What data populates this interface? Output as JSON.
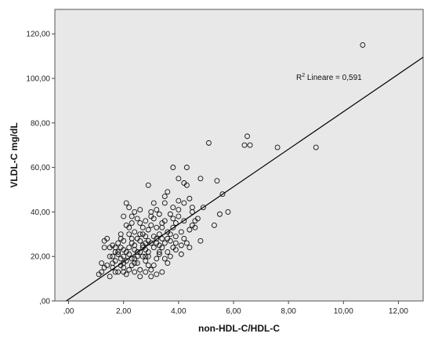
{
  "chart_data": {
    "type": "scatter",
    "xlabel": "non-HDL-C/HDL-C",
    "ylabel": "VLDL-C mg/dL",
    "xlim": [
      -0.5,
      12.9
    ],
    "ylim": [
      0,
      131
    ],
    "x_ticks": [
      ",00",
      "2,00",
      "4,00",
      "6,00",
      "8,00",
      "10,00",
      "12,00"
    ],
    "x_tick_values": [
      0,
      2,
      4,
      6,
      8,
      10,
      12
    ],
    "y_ticks": [
      ",00",
      "20,00",
      "40,00",
      "60,00",
      "80,00",
      "100,00",
      "120,00"
    ],
    "y_tick_values": [
      0,
      20,
      40,
      60,
      80,
      100,
      120
    ],
    "annotation": {
      "r2_prefix": "R",
      "r2_sup": "2",
      "r2_text": " Lineare = 0,591"
    },
    "fit_line": {
      "x1": -0.5,
      "y1": -3.5,
      "x2": 12.9,
      "y2": 109.5
    },
    "grid": false,
    "background": "#e8e8e8",
    "marker_color": "#111111",
    "points": [
      [
        10.7,
        115
      ],
      [
        9.0,
        69
      ],
      [
        7.6,
        69
      ],
      [
        6.6,
        70
      ],
      [
        6.5,
        74
      ],
      [
        6.4,
        70
      ],
      [
        5.1,
        71
      ],
      [
        5.6,
        48
      ],
      [
        5.8,
        40
      ],
      [
        5.4,
        54
      ],
      [
        5.3,
        34
      ],
      [
        5.5,
        39
      ],
      [
        4.8,
        55
      ],
      [
        4.9,
        42
      ],
      [
        4.8,
        27
      ],
      [
        4.5,
        40
      ],
      [
        4.2,
        53
      ],
      [
        4.3,
        52
      ],
      [
        4.3,
        60
      ],
      [
        3.8,
        60
      ],
      [
        4.0,
        55
      ],
      [
        4.0,
        45
      ],
      [
        4.2,
        44
      ],
      [
        4.4,
        46
      ],
      [
        4.5,
        42
      ],
      [
        4.0,
        38
      ],
      [
        4.2,
        36
      ],
      [
        4.1,
        31
      ],
      [
        4.2,
        28
      ],
      [
        4.3,
        26
      ],
      [
        4.4,
        24
      ],
      [
        4.5,
        34
      ],
      [
        4.6,
        33
      ],
      [
        4.1,
        21
      ],
      [
        3.9,
        23
      ],
      [
        3.7,
        27
      ],
      [
        3.6,
        49
      ],
      [
        3.5,
        47
      ],
      [
        3.8,
        42
      ],
      [
        3.7,
        39
      ],
      [
        3.5,
        36
      ],
      [
        3.4,
        33
      ],
      [
        3.6,
        31
      ],
      [
        3.3,
        30
      ],
      [
        3.2,
        28
      ],
      [
        3.5,
        26
      ],
      [
        3.4,
        24
      ],
      [
        3.3,
        21
      ],
      [
        3.2,
        19
      ],
      [
        3.1,
        16
      ],
      [
        2.9,
        52
      ],
      [
        3.0,
        40
      ],
      [
        3.1,
        37
      ],
      [
        3.0,
        34
      ],
      [
        2.9,
        32
      ],
      [
        2.8,
        29
      ],
      [
        2.9,
        27
      ],
      [
        2.7,
        25
      ],
      [
        2.8,
        23
      ],
      [
        2.6,
        22
      ],
      [
        2.7,
        20
      ],
      [
        2.8,
        18
      ],
      [
        2.9,
        16
      ],
      [
        3.0,
        14
      ],
      [
        2.8,
        13
      ],
      [
        2.6,
        14
      ],
      [
        2.5,
        17
      ],
      [
        2.4,
        19
      ],
      [
        2.5,
        22
      ],
      [
        2.4,
        25
      ],
      [
        2.3,
        28
      ],
      [
        2.4,
        31
      ],
      [
        2.3,
        35
      ],
      [
        2.5,
        37
      ],
      [
        2.4,
        40
      ],
      [
        2.2,
        42
      ],
      [
        2.1,
        44
      ],
      [
        2.0,
        38
      ],
      [
        2.1,
        34
      ],
      [
        1.9,
        30
      ],
      [
        2.0,
        27
      ],
      [
        1.9,
        24
      ],
      [
        1.8,
        22
      ],
      [
        2.0,
        20
      ],
      [
        2.1,
        18
      ],
      [
        1.9,
        16
      ],
      [
        1.8,
        13
      ],
      [
        1.7,
        13
      ],
      [
        1.6,
        15
      ],
      [
        1.7,
        18
      ],
      [
        1.6,
        20
      ],
      [
        1.5,
        24
      ],
      [
        1.4,
        28
      ],
      [
        1.3,
        27
      ],
      [
        1.3,
        24
      ],
      [
        1.2,
        17
      ],
      [
        1.3,
        15
      ],
      [
        1.4,
        16
      ],
      [
        1.2,
        13
      ],
      [
        1.1,
        12
      ],
      [
        1.5,
        11
      ],
      [
        1.6,
        25
      ],
      [
        1.7,
        22
      ],
      [
        1.8,
        26
      ],
      [
        2.2,
        30
      ],
      [
        2.3,
        26
      ],
      [
        2.2,
        21
      ],
      [
        2.3,
        19
      ],
      [
        2.6,
        30
      ],
      [
        2.7,
        33
      ],
      [
        2.6,
        35
      ],
      [
        2.8,
        36
      ],
      [
        3.0,
        38
      ],
      [
        3.2,
        41
      ],
      [
        3.1,
        44
      ],
      [
        3.3,
        22
      ],
      [
        3.5,
        19
      ],
      [
        3.6,
        17
      ],
      [
        3.7,
        20
      ],
      [
        3.8,
        24
      ],
      [
        3.9,
        29
      ],
      [
        3.8,
        33
      ],
      [
        3.9,
        35
      ],
      [
        4.0,
        41
      ],
      [
        3.4,
        13
      ],
      [
        3.2,
        12
      ],
      [
        3.0,
        11
      ],
      [
        2.6,
        11
      ],
      [
        2.4,
        13
      ],
      [
        2.2,
        14
      ],
      [
        2.0,
        15
      ],
      [
        1.9,
        19
      ],
      [
        2.1,
        22
      ],
      [
        2.2,
        24
      ],
      [
        2.4,
        23
      ],
      [
        2.6,
        27
      ],
      [
        2.7,
        30
      ],
      [
        2.9,
        22
      ],
      [
        3.1,
        24
      ],
      [
        3.2,
        33
      ],
      [
        3.4,
        35
      ],
      [
        3.6,
        28
      ],
      [
        3.7,
        30
      ],
      [
        3.4,
        28
      ],
      [
        2.8,
        26
      ],
      [
        2.5,
        20
      ],
      [
        2.3,
        16
      ],
      [
        2.0,
        17
      ],
      [
        1.8,
        21
      ],
      [
        1.5,
        20
      ],
      [
        2.1,
        12
      ],
      [
        2.9,
        20
      ],
      [
        3.0,
        26
      ],
      [
        3.3,
        25
      ],
      [
        3.6,
        22
      ],
      [
        3.9,
        26
      ],
      [
        4.1,
        25
      ],
      [
        4.6,
        36
      ],
      [
        4.7,
        37
      ],
      [
        4.4,
        32
      ],
      [
        3.8,
        37
      ],
      [
        3.5,
        44
      ],
      [
        3.3,
        39
      ],
      [
        2.7,
        24
      ],
      [
        2.5,
        28
      ],
      [
        2.2,
        33
      ],
      [
        2.0,
        23
      ],
      [
        1.7,
        24
      ],
      [
        2.3,
        38
      ],
      [
        2.6,
        41
      ],
      [
        1.9,
        28
      ],
      [
        3.1,
        29
      ],
      [
        3.2,
        26
      ],
      [
        2.8,
        20
      ],
      [
        2.4,
        17
      ],
      [
        2.0,
        13
      ],
      [
        1.6,
        17
      ]
    ]
  }
}
